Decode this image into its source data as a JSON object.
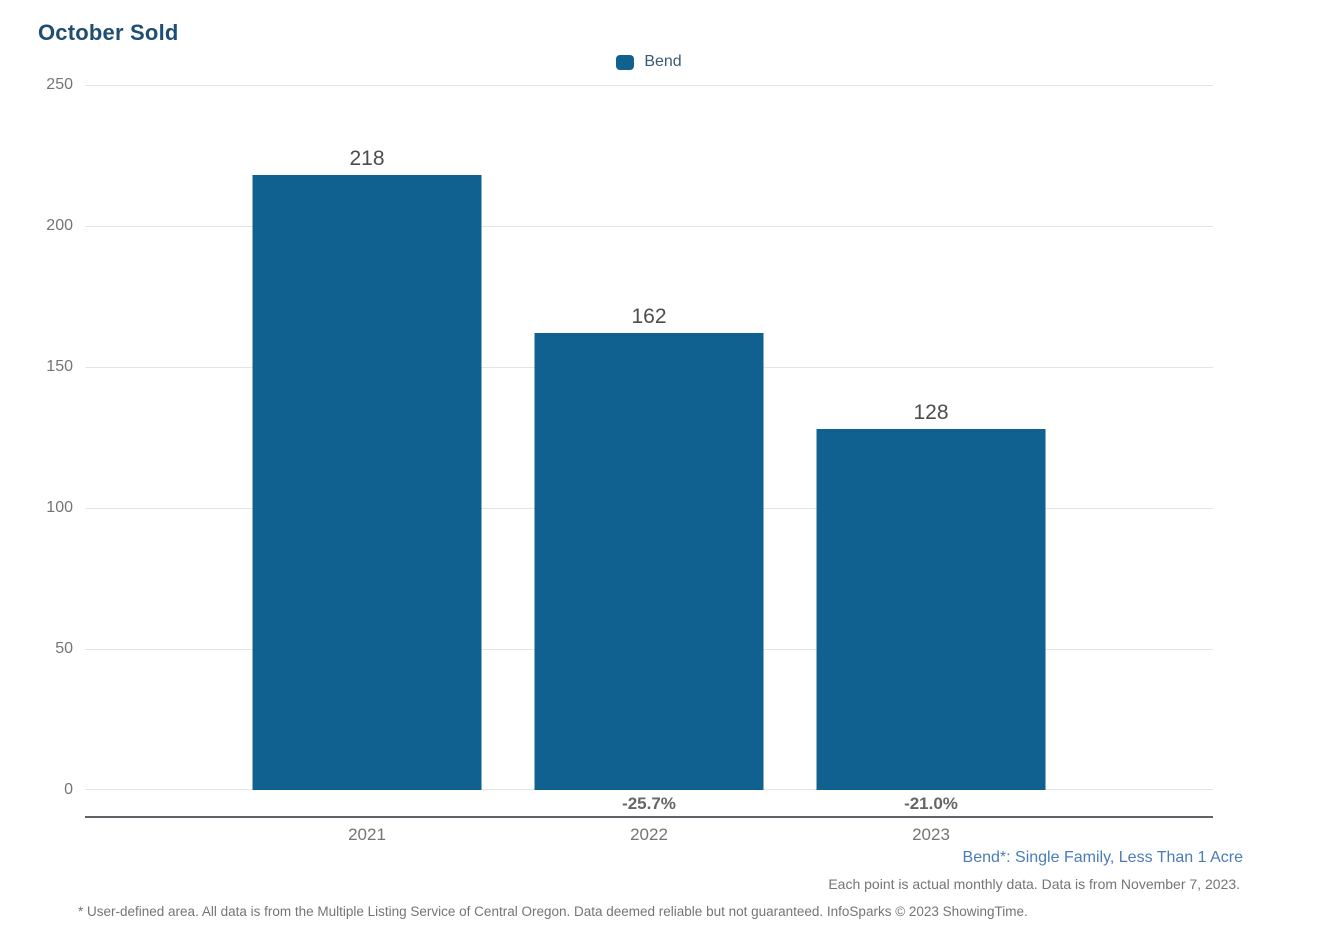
{
  "page": {
    "title": "October Sold"
  },
  "legend": {
    "items": [
      {
        "label": "Bend",
        "color": "#10618f"
      }
    ]
  },
  "chart_data": {
    "type": "bar",
    "title": "October Sold",
    "categories": [
      "2021",
      "2022",
      "2023"
    ],
    "series": [
      {
        "name": "Bend",
        "values": [
          218,
          162,
          128
        ]
      }
    ],
    "bar_value_labels": [
      "218",
      "162",
      "128"
    ],
    "pct_change_labels": [
      "",
      "-25.7%",
      "-21.0%"
    ],
    "ylim": [
      0,
      250
    ],
    "ytick_labels": [
      "250",
      "200",
      "150",
      "100",
      "50",
      "0"
    ],
    "grid": true,
    "legend_position": "top-center",
    "bar_color": "#10618f"
  },
  "footer": {
    "series_definition": "Bend*: Single Family, Less Than 1 Acre",
    "data_note": "Each point is actual monthly data. Data is from November 7, 2023.",
    "disclaimer": "* User-defined area. All data is from the Multiple Listing Service of Central Oregon. Data deemed reliable but not guaranteed. InfoSparks © 2023 ShowingTime."
  },
  "colors": {
    "title_text": "#1f4e74",
    "bar_fill": "#10618f",
    "legend_text": "#3a5a75",
    "axis_text": "#757575",
    "value_label_text": "#4d4d4d",
    "pct_label_text": "#666666",
    "series_note_text": "#4a7cb8",
    "gridline": "#e4e4e4",
    "axis_line": "#5f6368"
  }
}
